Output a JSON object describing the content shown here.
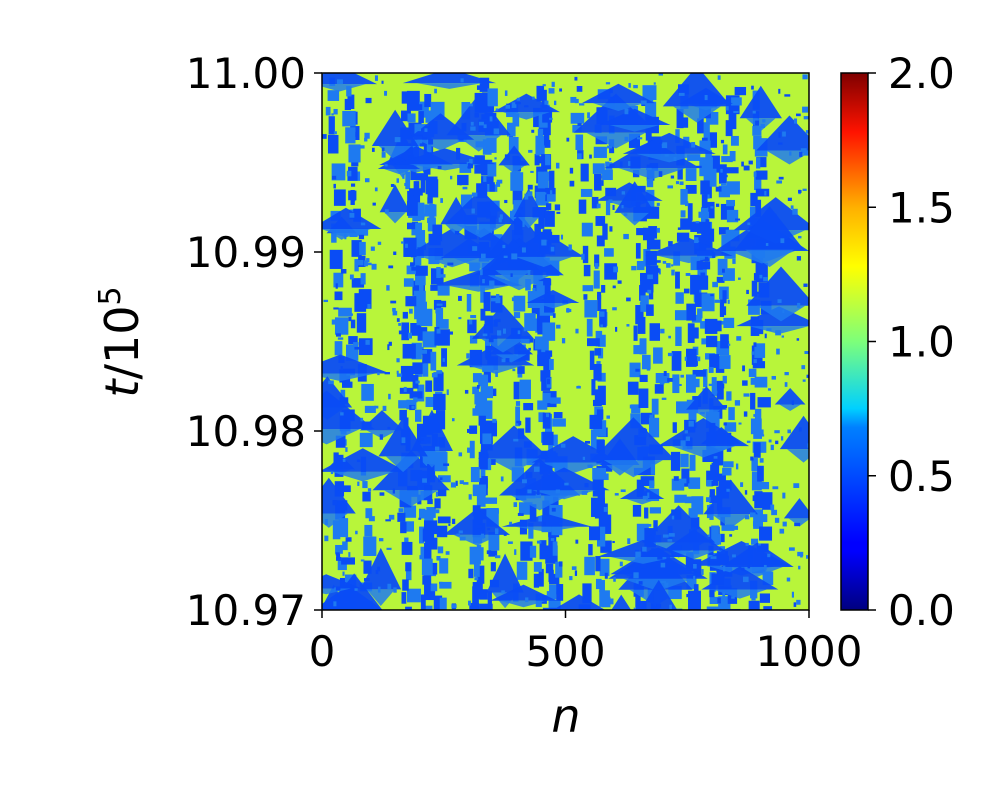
{
  "chart_data": {
    "type": "heatmap",
    "xlabel": "n",
    "ylabel": {
      "prefix": "t",
      "rest": "/10",
      "exponent": "5"
    },
    "xlim": [
      0,
      1000
    ],
    "ylim": [
      10.97,
      11.0
    ],
    "x_ticks": [
      "0",
      "500",
      "1000"
    ],
    "x_tick_values": [
      0,
      500,
      1000
    ],
    "y_ticks": [
      "10.97",
      "10.98",
      "10.99",
      "11.00"
    ],
    "y_tick_values": [
      10.97,
      10.98,
      10.99,
      11.0
    ],
    "colorbar": {
      "colormap": "jet",
      "range": [
        0.0,
        2.0
      ],
      "ticks": [
        "0.0",
        "0.5",
        "1.0",
        "1.5",
        "2.0"
      ],
      "tick_values": [
        0.0,
        0.5,
        1.0,
        1.5,
        2.0
      ]
    },
    "field_description": "spatiotemporal pattern: background values near 1.1 (green-yellow) with patches near 0.3 (blue) and triangular structures",
    "dominant_values": [
      1.1,
      0.3
    ],
    "colors": {
      "high_level": "#b8f53a",
      "low_level": "#0a4cf5",
      "low_edge": "#1e7af0"
    },
    "grid": false,
    "legend": "none"
  }
}
